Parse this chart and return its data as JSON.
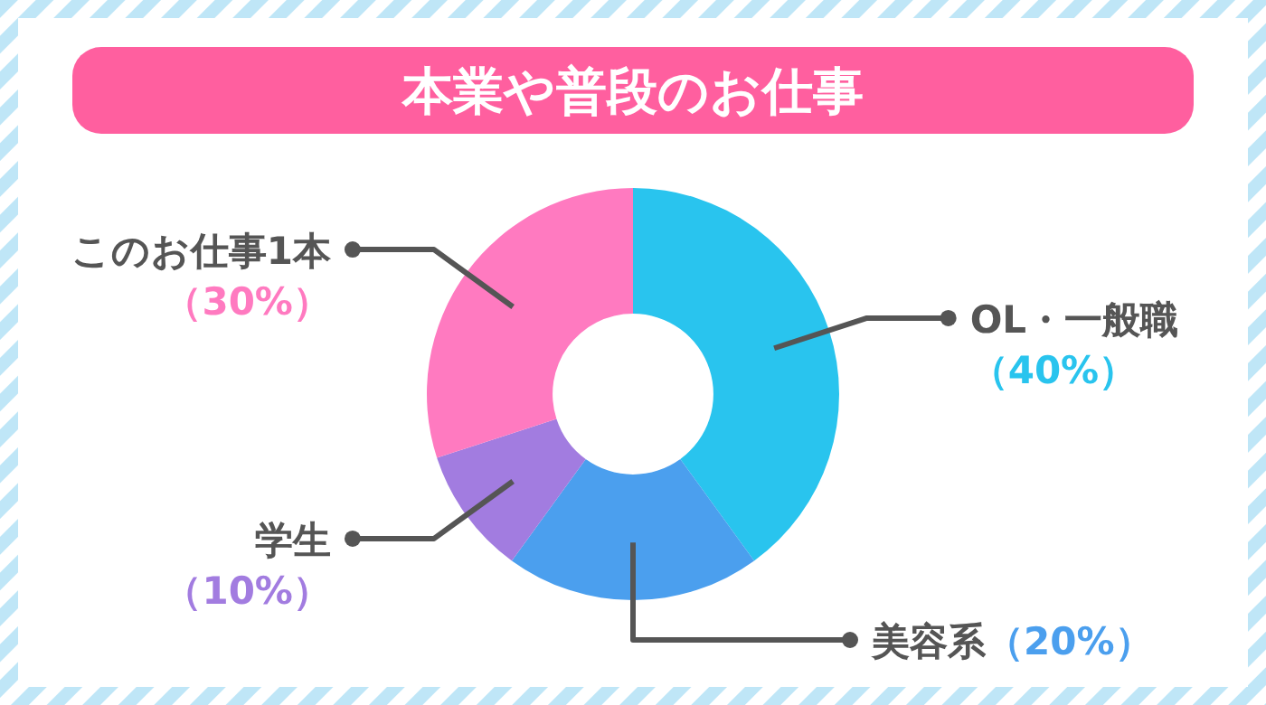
{
  "chart_data": {
    "type": "donut",
    "title": "本業や普段のお仕事",
    "categories": [
      "OL・一般職",
      "美容系",
      "学生",
      "このお仕事1本"
    ],
    "values": [
      40,
      20,
      10,
      30
    ],
    "colors": [
      "#29c4ee",
      "#4b9fee",
      "#a27ce0",
      "#ff7ac0"
    ],
    "value_labels": [
      "（40%）",
      "（20%）",
      "（10%）",
      "（30%）"
    ]
  }
}
